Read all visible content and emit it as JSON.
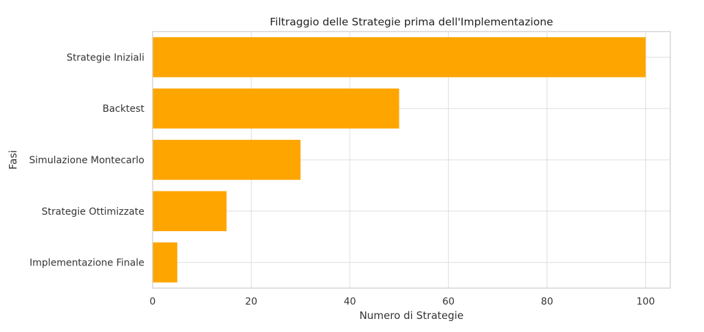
{
  "chart_data": {
    "type": "bar",
    "orientation": "horizontal",
    "title": "Filtraggio delle Strategie prima dell'Implementazione",
    "xlabel": "Numero di Strategie",
    "ylabel": "Fasi",
    "categories": [
      "Strategie Iniziali",
      "Backtest",
      "Simulazione Montecarlo",
      "Strategie Ottimizzate",
      "Implementazione Finale"
    ],
    "values": [
      100,
      50,
      30,
      15,
      5
    ],
    "xlim": [
      0,
      105
    ],
    "xticks": [
      0,
      20,
      40,
      60,
      80,
      100
    ],
    "xtick_labels": [
      "0",
      "20",
      "40",
      "60",
      "80",
      "100"
    ],
    "grid": true,
    "bar_color": "#FFA500",
    "grid_color": "#dddddd",
    "frame_color": "#cccccc"
  }
}
